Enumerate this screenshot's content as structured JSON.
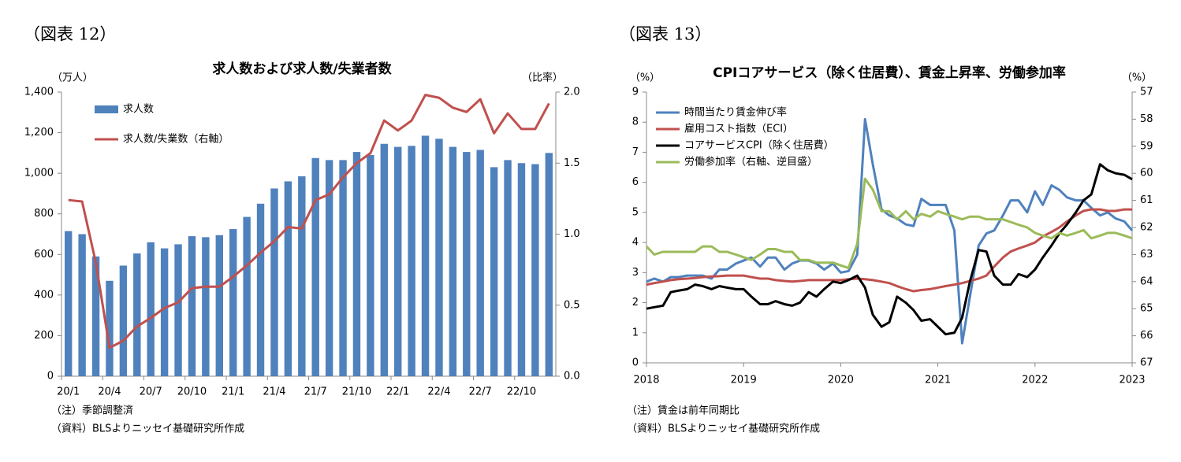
{
  "chart_data": [
    {
      "type": "bar",
      "figure_label": "（図表 12）",
      "title": "求人数および求人数/失業者数",
      "y_label": "（万人）",
      "y2_label": "（比率）",
      "notes": [
        "（注）季節調整済",
        "（資料）BLSよりニッセイ基礎研究所作成"
      ],
      "categories": [
        "20/1",
        null,
        null,
        "20/4",
        null,
        null,
        "20/7",
        null,
        null,
        "20/10",
        null,
        null,
        "21/1",
        null,
        null,
        "21/4",
        null,
        null,
        "21/7",
        null,
        null,
        "21/10",
        null,
        null,
        "22/1",
        null,
        null,
        "22/4",
        null,
        null,
        "22/7",
        null,
        null,
        "22/10",
        null,
        null
      ],
      "series": [
        {
          "name": "求人数",
          "type": "bar",
          "color": "#4f81bd",
          "values": [
            715,
            700,
            590,
            470,
            545,
            605,
            660,
            630,
            650,
            690,
            685,
            695,
            725,
            785,
            850,
            925,
            960,
            985,
            1075,
            1065,
            1065,
            1105,
            1090,
            1145,
            1130,
            1135,
            1185,
            1170,
            1130,
            1105,
            1115,
            1030,
            1065,
            1050,
            1045,
            1100
          ]
        },
        {
          "name": "求人数/失業数（右軸）",
          "type": "line",
          "axis": "y2",
          "color": "#c0504d",
          "values": [
            1.24,
            1.23,
            0.8,
            0.2,
            0.25,
            0.35,
            0.41,
            0.48,
            0.52,
            0.62,
            0.63,
            0.63,
            0.7,
            0.78,
            0.87,
            0.95,
            1.05,
            1.04,
            1.24,
            1.28,
            1.4,
            1.5,
            1.57,
            1.8,
            1.73,
            1.8,
            1.98,
            1.96,
            1.89,
            1.86,
            1.95,
            1.71,
            1.85,
            1.74,
            1.74,
            1.92
          ]
        }
      ],
      "ylim": [
        0,
        1400
      ],
      "yticks": [
        0,
        200,
        400,
        600,
        800,
        {
          "value": 1000,
          "label": "1,000"
        },
        {
          "value": 1200,
          "label": "1,200"
        },
        {
          "value": 1400,
          "label": "1,400"
        }
      ],
      "y2lim": [
        0,
        2
      ],
      "y2ticks": [
        {
          "value": 0,
          "label": "0.0"
        },
        0.5,
        {
          "value": 1,
          "label": "1.0"
        },
        1.5,
        {
          "value": 2,
          "label": "2.0"
        }
      ],
      "grid": false,
      "legend": "upper-left"
    },
    {
      "type": "line",
      "figure_label": "（図表 13）",
      "title": "CPIコアサービス（除く住居費）、賃金上昇率、労働参加率",
      "y_label": "（%）",
      "y2_label": "（%）",
      "notes": [
        "（注）賃金は前年同期比",
        "（資料）BLSよりニッセイ基礎研究所作成"
      ],
      "x": [
        2018,
        2018.08,
        2018.17,
        2018.25,
        2018.33,
        2018.42,
        2018.5,
        2018.58,
        2018.67,
        2018.75,
        2018.83,
        2018.92,
        2019,
        2019.08,
        2019.17,
        2019.25,
        2019.33,
        2019.42,
        2019.5,
        2019.58,
        2019.67,
        2019.75,
        2019.83,
        2019.92,
        2020,
        2020.08,
        2020.17,
        2020.25,
        2020.33,
        2020.42,
        2020.5,
        2020.58,
        2020.67,
        2020.75,
        2020.83,
        2020.92,
        2021,
        2021.08,
        2021.17,
        2021.25,
        2021.33,
        2021.42,
        2021.5,
        2021.58,
        2021.67,
        2021.75,
        2021.83,
        2021.92,
        2022,
        2022.08,
        2022.17,
        2022.25,
        2022.33,
        2022.42,
        2022.5,
        2022.58,
        2022.67,
        2022.75,
        2022.83,
        2022.92,
        2023
      ],
      "series": [
        {
          "name": "時間当たり賃金伸び率",
          "color": "#4f81bd",
          "values": [
            2.7,
            2.8,
            2.7,
            2.85,
            2.85,
            2.9,
            2.9,
            2.9,
            2.8,
            3.1,
            3.1,
            3.3,
            3.4,
            3.5,
            3.2,
            3.5,
            3.5,
            3.1,
            3.3,
            3.4,
            3.4,
            3.3,
            3.1,
            3.3,
            3.0,
            3.05,
            3.6,
            8.1,
            6.6,
            5.1,
            4.9,
            4.8,
            4.6,
            4.55,
            5.45,
            5.25,
            5.25,
            5.25,
            4.4,
            0.65,
            2.2,
            3.9,
            4.3,
            4.4,
            4.9,
            5.4,
            5.4,
            5.0,
            5.7,
            5.25,
            5.9,
            5.75,
            5.5,
            5.4,
            5.4,
            5.15,
            4.9,
            5.0,
            4.8,
            4.7,
            4.4
          ]
        },
        {
          "name": "雇用コスト指数（ECI）",
          "color": "#c0504d",
          "values": [
            2.6,
            2.65,
            2.7,
            2.75,
            2.78,
            2.8,
            2.82,
            2.85,
            2.87,
            2.88,
            2.9,
            2.9,
            2.9,
            2.85,
            2.8,
            2.8,
            2.75,
            2.72,
            2.7,
            2.72,
            2.75,
            2.75,
            2.75,
            2.75,
            2.75,
            2.78,
            2.8,
            2.78,
            2.75,
            2.7,
            2.65,
            2.55,
            2.45,
            2.38,
            2.42,
            2.45,
            2.5,
            2.55,
            2.6,
            2.65,
            2.72,
            2.8,
            2.9,
            3.2,
            3.5,
            3.7,
            3.8,
            3.9,
            4.0,
            4.2,
            4.35,
            4.5,
            4.7,
            4.9,
            5.05,
            5.1,
            5.1,
            5.05,
            5.05,
            5.1,
            5.1
          ]
        },
        {
          "name": "コアサービスCPI（除く住居費）",
          "color": "#000000",
          "values": [
            1.8,
            1.85,
            1.9,
            2.35,
            2.4,
            2.45,
            2.6,
            2.55,
            2.45,
            2.55,
            2.5,
            2.45,
            2.45,
            2.2,
            1.95,
            1.95,
            2.05,
            1.95,
            1.9,
            2.0,
            2.35,
            2.2,
            2.45,
            2.7,
            2.65,
            2.75,
            2.9,
            2.5,
            1.6,
            1.2,
            1.35,
            2.2,
            2.0,
            1.75,
            1.4,
            1.45,
            1.2,
            0.95,
            1.0,
            1.5,
            2.7,
            3.75,
            3.7,
            2.9,
            2.6,
            2.6,
            2.95,
            2.85,
            3.1,
            3.5,
            3.9,
            4.3,
            4.6,
            5.0,
            5.4,
            5.6,
            6.6,
            6.4,
            6.3,
            6.25,
            6.1
          ]
        },
        {
          "name": "労働参加率（右軸、逆目盛）",
          "color": "#9bbb59",
          "axis": "y2",
          "values": [
            62.7,
            63.0,
            62.9,
            62.9,
            62.9,
            62.9,
            62.9,
            62.7,
            62.7,
            62.9,
            62.9,
            63.0,
            63.1,
            63.2,
            63.0,
            62.8,
            62.8,
            62.9,
            62.9,
            63.2,
            63.2,
            63.3,
            63.3,
            63.3,
            63.4,
            63.5,
            62.6,
            60.2,
            60.6,
            61.4,
            61.4,
            61.7,
            61.4,
            61.7,
            61.5,
            61.6,
            61.4,
            61.5,
            61.6,
            61.7,
            61.6,
            61.6,
            61.7,
            61.7,
            61.7,
            61.8,
            61.9,
            62.0,
            62.2,
            62.3,
            62.4,
            62.2,
            62.3,
            62.2,
            62.1,
            62.4,
            62.3,
            62.2,
            62.2,
            62.3,
            62.4
          ]
        }
      ],
      "xlim": [
        2018,
        2023
      ],
      "xticks": [
        2018,
        2019,
        2020,
        2021,
        2022,
        2023
      ],
      "ylim": [
        0,
        9
      ],
      "yticks": [
        0,
        1,
        2,
        3,
        4,
        5,
        6,
        7,
        8,
        9
      ],
      "y2lim": [
        67,
        57
      ],
      "y2ticks": [
        57,
        58,
        59,
        60,
        61,
        62,
        63,
        64,
        65,
        66,
        67
      ],
      "grid": false,
      "legend": "upper-left"
    }
  ]
}
